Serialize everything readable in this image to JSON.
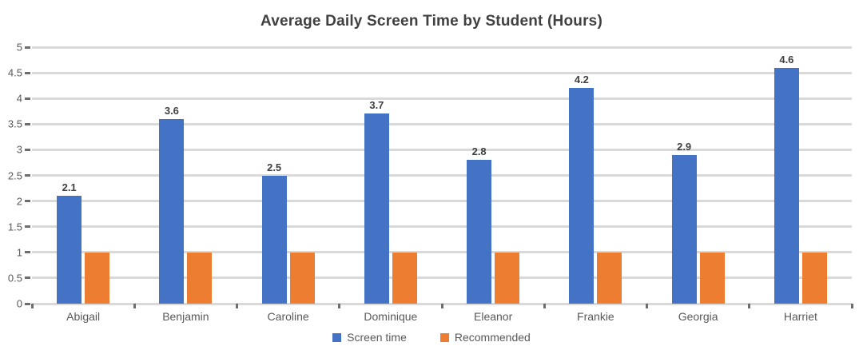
{
  "chart_data": {
    "type": "bar",
    "title": "Average Daily Screen Time by Student (Hours)",
    "categories": [
      "Abigail",
      "Benjamin",
      "Caroline",
      "Dominique",
      "Eleanor",
      "Frankie",
      "Georgia",
      "Harriet"
    ],
    "series": [
      {
        "name": "Screen time",
        "values": [
          2.1,
          3.6,
          2.5,
          3.7,
          2.8,
          4.2,
          2.9,
          4.6
        ],
        "data_labels": [
          "2.1",
          "3.6",
          "2.5",
          "3.7",
          "2.8",
          "4.2",
          "2.9",
          "4.6"
        ],
        "color": "#4472C4"
      },
      {
        "name": "Recommended",
        "values": [
          1.0,
          1.0,
          1.0,
          1.0,
          1.0,
          1.0,
          1.0,
          1.0
        ],
        "data_labels": [
          "",
          "",
          "",
          "",
          "",
          "",
          "",
          ""
        ],
        "color": "#ED7D31"
      }
    ],
    "xlabel": "",
    "ylabel": "",
    "ylim": [
      0,
      5
    ],
    "ytick_labels": [
      "0",
      "0.5",
      "1",
      "1.5",
      "2",
      "2.5",
      "3",
      "3.5",
      "4",
      "4.5",
      "5"
    ],
    "grid": "horizontal",
    "legend_position": "bottom",
    "colors": {
      "gridline": "#d9d9d9",
      "axis_tick": "#6d6d6d",
      "title_text": "#404040",
      "axis_text": "#595959",
      "data_label_text": "#404040",
      "background": "#ffffff"
    }
  }
}
